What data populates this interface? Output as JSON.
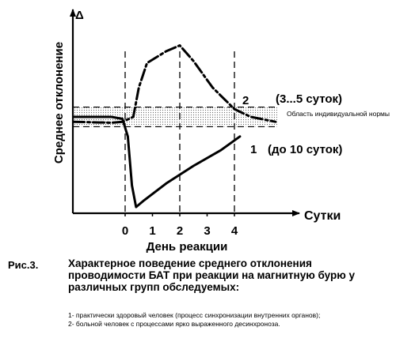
{
  "chart_data": {
    "type": "line",
    "ylabel": "Среднее отклонение",
    "y_axis_symbol": "Δ",
    "xlabel": "Сутки",
    "x_axis_caption": "День реакции",
    "x_ticks": [
      "0",
      "1",
      "2",
      "3",
      "4"
    ],
    "xlim": [
      -2,
      6.3
    ],
    "ylim": [
      -1,
      1
    ],
    "band_label": "Область индивидуальной нормы",
    "band_y": [
      -0.1,
      0.1
    ],
    "guides_x": [
      0,
      2,
      4
    ],
    "guides_y": [
      -0.1,
      0.1
    ],
    "series": [
      {
        "name": "1",
        "annotation": "(до 10 суток)",
        "style": "solid",
        "x": [
          -1.9,
          -0.5,
          -0.1,
          0.1,
          0.25,
          0.4,
          0.7,
          1.5,
          2.5,
          3.5,
          4.2
        ],
        "y": [
          0.0,
          0.0,
          -0.02,
          -0.2,
          -0.7,
          -0.92,
          -0.85,
          -0.68,
          -0.5,
          -0.34,
          -0.2
        ]
      },
      {
        "name": "2",
        "annotation": "(3...5 суток)",
        "style": "dashdot",
        "x": [
          -1.9,
          -0.5,
          -0.1,
          0.3,
          0.5,
          0.8,
          1.5,
          2.0,
          2.5,
          3.2,
          4.0,
          4.6,
          5.5
        ],
        "y": [
          -0.05,
          -0.06,
          -0.05,
          0.0,
          0.3,
          0.55,
          0.67,
          0.73,
          0.57,
          0.3,
          0.08,
          0.0,
          -0.05
        ]
      }
    ]
  },
  "caption": {
    "figure_label": "Рис.3.",
    "text": "Характерное поведение среднего отклонения проводимости БАТ при реакции на магнитную бурю у различных групп обследуемых:",
    "notes": [
      "1- практически здоровый человек (процесс синхронизации внутренних органов);",
      "2- больной человек с процессами ярко выраженного десинхроноза."
    ]
  }
}
